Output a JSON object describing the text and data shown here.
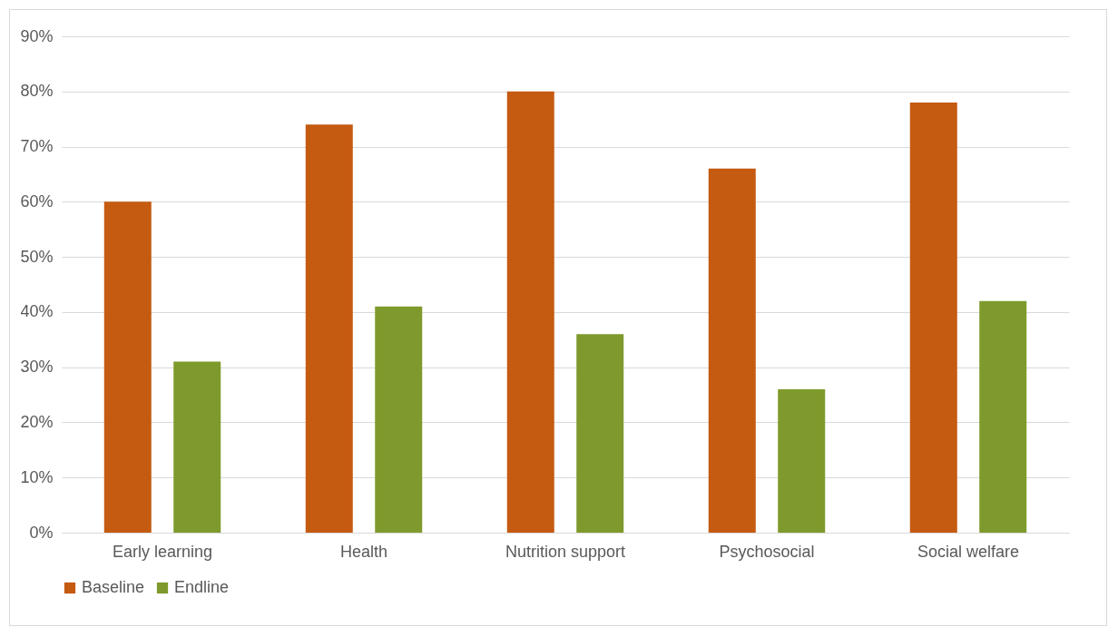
{
  "chart_data": {
    "type": "bar",
    "categories": [
      "Early learning",
      "Health",
      "Nutrition support",
      "Psychosocial",
      "Social welfare"
    ],
    "series": [
      {
        "name": "Baseline",
        "color": "#c55a11",
        "values": [
          60,
          74,
          80,
          66,
          78
        ]
      },
      {
        "name": "Endline",
        "color": "#7f9a2c",
        "values": [
          31,
          41,
          36,
          26,
          42
        ]
      }
    ],
    "ylim": [
      0,
      90
    ],
    "yticks": [
      {
        "value": 0,
        "label": "0%"
      },
      {
        "value": 10,
        "label": "10%"
      },
      {
        "value": 20,
        "label": "20%"
      },
      {
        "value": 30,
        "label": "30%"
      },
      {
        "value": 40,
        "label": "40%"
      },
      {
        "value": 50,
        "label": "50%"
      },
      {
        "value": 60,
        "label": "60%"
      },
      {
        "value": 70,
        "label": "70%"
      },
      {
        "value": 80,
        "label": "80%"
      },
      {
        "value": 90,
        "label": "90%"
      }
    ],
    "grid": "y",
    "legend": "bottom"
  }
}
